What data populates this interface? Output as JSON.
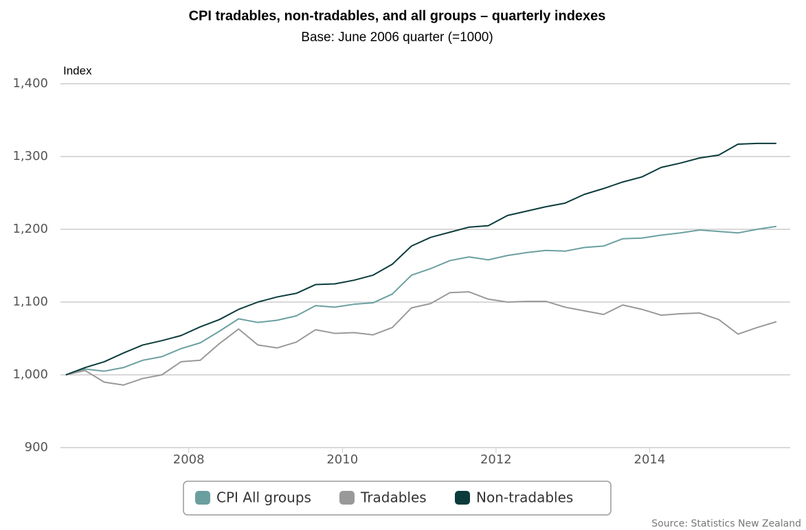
{
  "chart_data": {
    "type": "line",
    "title": "CPI tradables, non-tradables, and all groups – quarterly indexes",
    "subtitle": "Base: June 2006 quarter (=1000)",
    "y_label": "Index",
    "source": "Source: Statistics New Zealand",
    "x": [
      2006.4,
      2006.65,
      2006.9,
      2007.15,
      2007.4,
      2007.65,
      2007.9,
      2008.15,
      2008.4,
      2008.65,
      2008.9,
      2009.15,
      2009.4,
      2009.65,
      2009.9,
      2010.15,
      2010.4,
      2010.65,
      2010.9,
      2011.15,
      2011.4,
      2011.65,
      2011.9,
      2012.15,
      2012.4,
      2012.65,
      2012.9,
      2013.15,
      2013.4,
      2013.65,
      2013.9,
      2014.15,
      2014.4,
      2014.65,
      2014.9,
      2015.15,
      2015.4,
      2015.65
    ],
    "series": [
      {
        "name": "CPI All groups",
        "color": "#6b9f9f",
        "values": [
          1000,
          1008,
          1005,
          1010,
          1020,
          1025,
          1036,
          1044,
          1060,
          1077,
          1072,
          1075,
          1081,
          1095,
          1093,
          1097,
          1099,
          1111,
          1137,
          1146,
          1157,
          1162,
          1158,
          1164,
          1168,
          1171,
          1170,
          1175,
          1177,
          1187,
          1188,
          1192,
          1195,
          1199,
          1197,
          1195,
          1200,
          1204
        ]
      },
      {
        "name": "Tradables",
        "color": "#999999",
        "values": [
          1000,
          1006,
          990,
          986,
          995,
          1000,
          1018,
          1020,
          1043,
          1063,
          1041,
          1037,
          1045,
          1062,
          1057,
          1058,
          1055,
          1065,
          1092,
          1098,
          1113,
          1114,
          1104,
          1100,
          1101,
          1101,
          1093,
          1088,
          1083,
          1096,
          1090,
          1082,
          1084,
          1085,
          1076,
          1056,
          1065,
          1073
        ]
      },
      {
        "name": "Non-tradables",
        "color": "#0b3b3b",
        "values": [
          1000,
          1010,
          1018,
          1030,
          1041,
          1047,
          1054,
          1066,
          1076,
          1090,
          1100,
          1107,
          1112,
          1124,
          1125,
          1130,
          1137,
          1152,
          1177,
          1189,
          1196,
          1203,
          1205,
          1219,
          1225,
          1231,
          1236,
          1248,
          1256,
          1265,
          1272,
          1285,
          1291,
          1298,
          1302,
          1317,
          1318,
          1318
        ]
      }
    ],
    "xlim": [
      2006.33,
      2015.83
    ],
    "xticks": [
      2008,
      2010,
      2012,
      2014
    ],
    "ylim": [
      900,
      1400
    ],
    "yticks": [
      {
        "value": 900,
        "label": "900"
      },
      {
        "value": 1000,
        "label": "1,000"
      },
      {
        "value": 1100,
        "label": "1,100"
      },
      {
        "value": 1200,
        "label": "1,200"
      },
      {
        "value": 1300,
        "label": "1,300"
      },
      {
        "value": 1400,
        "label": "1,400"
      }
    ],
    "grid": true,
    "legend": "bottom"
  }
}
